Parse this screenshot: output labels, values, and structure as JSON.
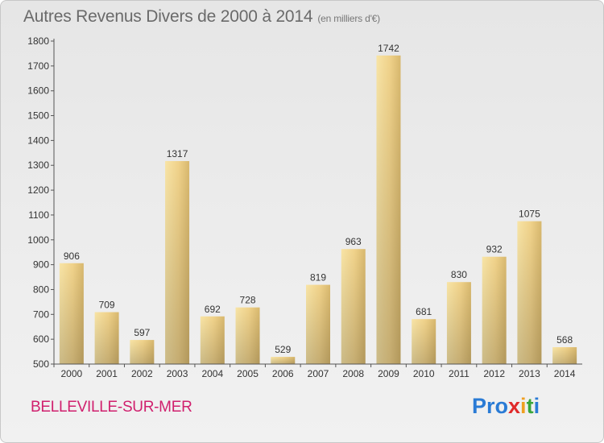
{
  "header": {
    "title": "Autres Revenus Divers de 2000 à 2014",
    "unit": "(en milliers d'€)"
  },
  "footer": {
    "commune": "BELLEVILLE-SUR-MER",
    "logo": [
      "Pro",
      "x",
      "i",
      "t",
      "i"
    ]
  },
  "chart_data": {
    "type": "bar",
    "title": "Autres Revenus Divers de 2000 à 2014",
    "subtitle": "(en milliers d'€)",
    "xlabel": "",
    "ylabel": "",
    "categories": [
      "2000",
      "2001",
      "2002",
      "2003",
      "2004",
      "2005",
      "2006",
      "2007",
      "2008",
      "2009",
      "2010",
      "2011",
      "2012",
      "2013",
      "2014"
    ],
    "values": [
      906,
      709,
      597,
      1317,
      692,
      728,
      529,
      819,
      963,
      1742,
      681,
      830,
      932,
      1075,
      568
    ],
    "ylim": [
      500,
      1800
    ],
    "yticks": [
      500,
      600,
      700,
      800,
      900,
      1000,
      1100,
      1200,
      1300,
      1400,
      1500,
      1600,
      1700,
      1800
    ],
    "grid": false,
    "legend": "none",
    "colors": {
      "bar_light": "#f5dc9a",
      "bar_dark": "#c9a85e",
      "axis": "#555555"
    }
  }
}
